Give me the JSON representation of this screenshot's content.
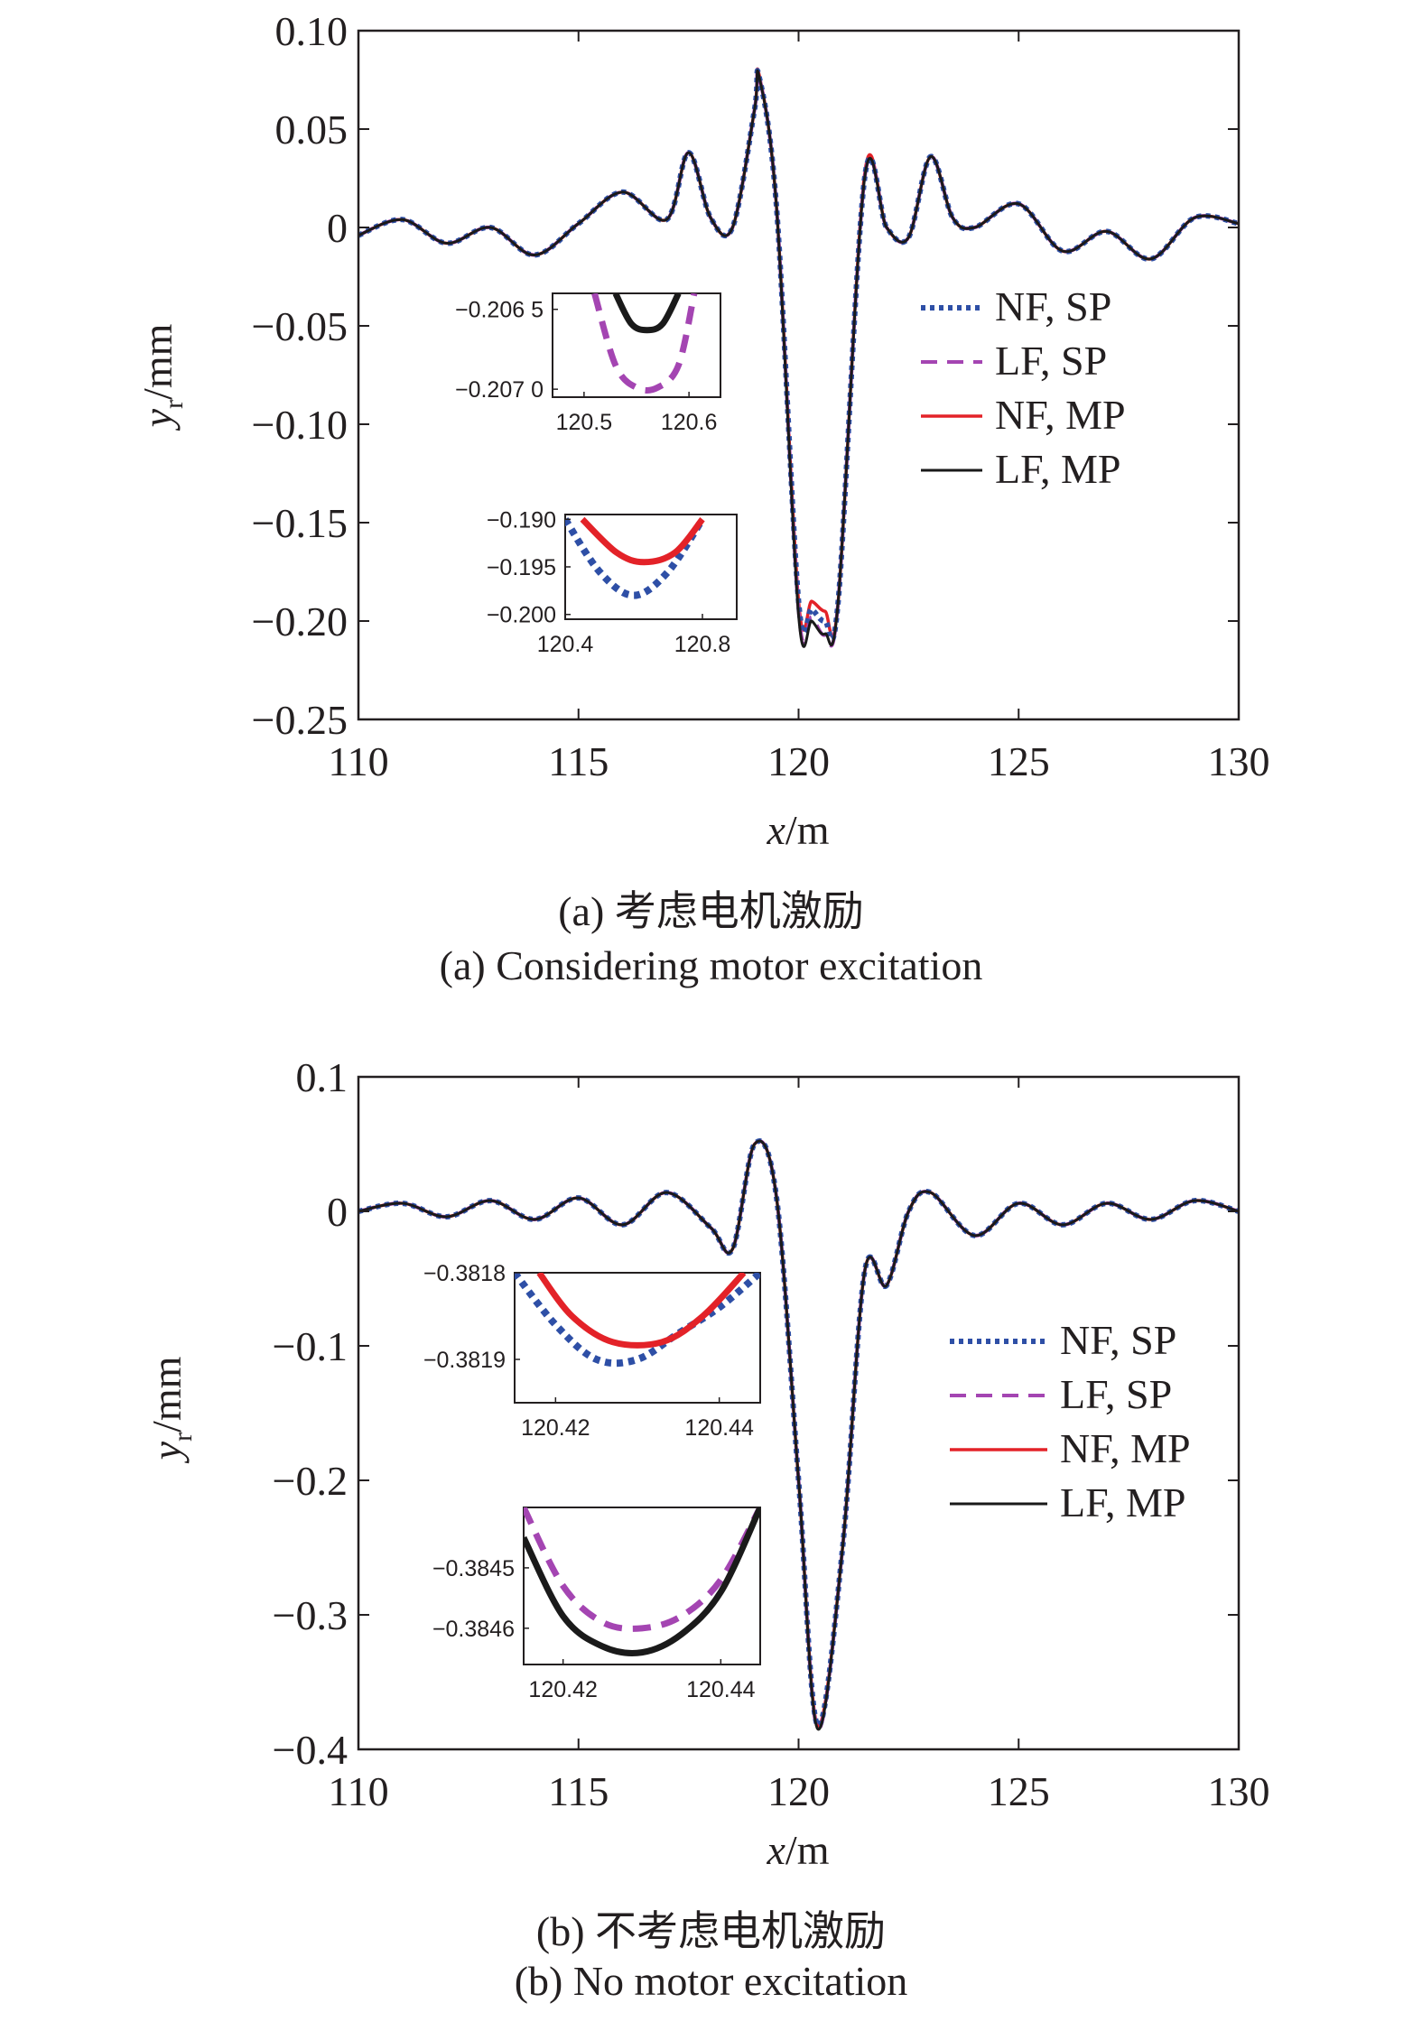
{
  "colors": {
    "nf_sp": "#2e4fa6",
    "lf_sp": "#a445b2",
    "nf_mp": "#e32228",
    "lf_mp": "#1a1a1a"
  },
  "chart_data": [
    {
      "type": "line",
      "caption_cn": "(a) 考虑电机激励",
      "caption_en": "(a) Considering motor excitation",
      "xlabel_var": "x",
      "xlabel_unit": "/m",
      "ylabel_var": "y",
      "ylabel_sub": "r",
      "ylabel_unit": "/mm",
      "xlim": [
        110,
        130
      ],
      "ylim": [
        -0.25,
        0.1
      ],
      "xticks": [
        "110",
        "115",
        "120",
        "125",
        "130"
      ],
      "xtick_values": [
        110,
        115,
        120,
        125,
        130
      ],
      "yticks": [
        "0.10",
        "0.05",
        "0",
        "−0.05",
        "−0.10",
        "−0.15",
        "−0.20",
        "−0.25"
      ],
      "ytick_values": [
        0.1,
        0.05,
        0,
        -0.05,
        -0.1,
        -0.15,
        -0.2,
        -0.25
      ],
      "legend": [
        "NF, SP",
        "LF, SP",
        "NF, MP",
        "LF, MP"
      ],
      "legend_position": "right",
      "series": [
        {
          "name": "NF, SP",
          "x": [
            110,
            111,
            112,
            113,
            114,
            115,
            116,
            117,
            117.5,
            118,
            118.5,
            119,
            119.1,
            119.5,
            120,
            120.3,
            120.6,
            120.9,
            121.5,
            122,
            122.5,
            123,
            123.5,
            124,
            125,
            126,
            127,
            128,
            129,
            130
          ],
          "y": [
            -0.004,
            0.004,
            -0.008,
            0.0,
            -0.014,
            0.002,
            0.018,
            0.004,
            0.038,
            0.005,
            0.0,
            0.06,
            0.077,
            0.01,
            -0.19,
            -0.194,
            -0.2,
            -0.19,
            0.025,
            0.0,
            -0.005,
            0.036,
            0.005,
            0.0,
            0.012,
            -0.012,
            -0.002,
            -0.016,
            0.005,
            0.002
          ]
        },
        {
          "name": "LF, SP",
          "x": [
            110,
            111,
            112,
            113,
            114,
            115,
            116,
            117,
            117.5,
            118,
            118.5,
            119,
            119.1,
            119.5,
            120,
            120.3,
            120.6,
            120.9,
            121.5,
            122,
            122.5,
            123,
            123.5,
            124,
            125,
            126,
            127,
            128,
            129,
            130
          ],
          "y": [
            -0.004,
            0.004,
            -0.008,
            0.0,
            -0.014,
            0.002,
            0.018,
            0.004,
            0.038,
            0.005,
            0.0,
            0.06,
            0.077,
            0.01,
            -0.195,
            -0.198,
            -0.207,
            -0.19,
            0.025,
            0.0,
            -0.005,
            0.036,
            0.005,
            0.0,
            0.012,
            -0.012,
            -0.002,
            -0.016,
            0.005,
            0.002
          ]
        },
        {
          "name": "NF, MP",
          "x": [
            110,
            111,
            112,
            113,
            114,
            115,
            116,
            117,
            117.5,
            118,
            118.5,
            119,
            119.1,
            119.5,
            120,
            120.3,
            120.6,
            120.9,
            121.5,
            122,
            122.5,
            123,
            123.5,
            124,
            125,
            126,
            127,
            128,
            129,
            130
          ],
          "y": [
            -0.004,
            0.004,
            -0.008,
            0.0,
            -0.014,
            0.002,
            0.018,
            0.004,
            0.038,
            0.005,
            0.0,
            0.06,
            0.078,
            0.01,
            -0.19,
            -0.19,
            -0.195,
            -0.19,
            0.027,
            0.0,
            -0.005,
            0.036,
            0.005,
            0.0,
            0.012,
            -0.012,
            -0.002,
            -0.016,
            0.005,
            0.002
          ]
        },
        {
          "name": "LF, MP",
          "x": [
            110,
            111,
            112,
            113,
            114,
            115,
            116,
            117,
            117.5,
            118,
            118.5,
            119,
            119.1,
            119.5,
            120,
            120.3,
            120.6,
            120.9,
            121.5,
            122,
            122.5,
            123,
            123.5,
            124,
            125,
            126,
            127,
            128,
            129,
            130
          ],
          "y": [
            -0.004,
            0.004,
            -0.008,
            0.0,
            -0.014,
            0.002,
            0.018,
            0.004,
            0.038,
            0.005,
            0.0,
            0.06,
            0.077,
            0.01,
            -0.197,
            -0.2,
            -0.2065,
            -0.19,
            0.025,
            0.0,
            -0.005,
            0.036,
            0.005,
            0.0,
            0.012,
            -0.012,
            -0.002,
            -0.016,
            0.005,
            0.002
          ]
        }
      ],
      "insets": [
        {
          "xticks": [
            "120.5",
            "120.6"
          ],
          "xtick_values": [
            120.5,
            120.6
          ],
          "xlim": [
            120.47,
            120.63
          ],
          "yticks": [
            "−0.206 5",
            "−0.207 0"
          ],
          "ytick_values": [
            -0.2065,
            -0.207
          ],
          "ylim": [
            -0.20705,
            -0.2064
          ],
          "series": [
            {
              "name": "LF, MP",
              "x": [
                120.53,
                120.545,
                120.56,
                120.575,
                120.59
              ],
              "y": [
                -0.2064,
                -0.20659,
                -0.20663,
                -0.20659,
                -0.2064
              ]
            },
            {
              "name": "LF, SP",
              "x": [
                120.51,
                120.53,
                120.55,
                120.57,
                120.59,
                120.605
              ],
              "y": [
                -0.2064,
                -0.20685,
                -0.20699,
                -0.20699,
                -0.20685,
                -0.2064
              ]
            }
          ]
        },
        {
          "xticks": [
            "120.4",
            "120.8"
          ],
          "xtick_values": [
            120.4,
            120.8
          ],
          "xlim": [
            120.4,
            120.9
          ],
          "yticks": [
            "−0.190",
            "−0.195",
            "−0.200"
          ],
          "ytick_values": [
            -0.19,
            -0.195,
            -0.2
          ],
          "ylim": [
            -0.2005,
            -0.1895
          ],
          "series": [
            {
              "name": "NF, SP",
              "x": [
                120.4,
                120.5,
                120.6,
                120.7,
                120.8
              ],
              "y": [
                -0.19,
                -0.1955,
                -0.198,
                -0.1955,
                -0.19
              ]
            },
            {
              "name": "NF, MP",
              "x": [
                120.45,
                120.55,
                120.63,
                120.72,
                120.8
              ],
              "y": [
                -0.19,
                -0.1935,
                -0.1945,
                -0.1935,
                -0.19
              ]
            }
          ]
        }
      ]
    },
    {
      "type": "line",
      "caption_cn": "(b) 不考虑电机激励",
      "caption_en": "(b) No motor excitation",
      "xlabel_var": "x",
      "xlabel_unit": "/m",
      "ylabel_var": "y",
      "ylabel_sub": "r",
      "ylabel_unit": "/mm",
      "xlim": [
        110,
        130
      ],
      "ylim": [
        -0.4,
        0.1
      ],
      "xticks": [
        "110",
        "115",
        "120",
        "125",
        "130"
      ],
      "xtick_values": [
        110,
        115,
        120,
        125,
        130
      ],
      "yticks": [
        "0.1",
        "0",
        "−0.1",
        "−0.2",
        "−0.3",
        "−0.4"
      ],
      "ytick_values": [
        0.1,
        0,
        -0.1,
        -0.2,
        -0.3,
        -0.4
      ],
      "legend": [
        "NF, SP",
        "LF, SP",
        "NF, MP",
        "LF, MP"
      ],
      "legend_position": "right",
      "series": [
        {
          "name": "NF, SP",
          "x": [
            110,
            111,
            112,
            113,
            114,
            115,
            116,
            117,
            118,
            118.5,
            119,
            119.5,
            120,
            120.43,
            121,
            121.5,
            122,
            122.5,
            123,
            124,
            125,
            126,
            127,
            128,
            129,
            130
          ],
          "y": [
            0.0,
            0.006,
            -0.004,
            0.008,
            -0.006,
            0.01,
            -0.01,
            0.014,
            -0.012,
            -0.028,
            0.05,
            0.01,
            -0.2,
            -0.3819,
            -0.25,
            -0.045,
            -0.055,
            0.0,
            0.014,
            -0.018,
            0.006,
            -0.01,
            0.006,
            -0.006,
            0.008,
            0.0
          ]
        },
        {
          "name": "LF, SP",
          "x": [
            110,
            111,
            112,
            113,
            114,
            115,
            116,
            117,
            118,
            118.5,
            119,
            119.5,
            120,
            120.43,
            121,
            121.5,
            122,
            122.5,
            123,
            124,
            125,
            126,
            127,
            128,
            129,
            130
          ],
          "y": [
            0.0,
            0.006,
            -0.004,
            0.008,
            -0.006,
            0.01,
            -0.01,
            0.014,
            -0.012,
            -0.028,
            0.05,
            0.01,
            -0.2,
            -0.3846,
            -0.25,
            -0.045,
            -0.055,
            0.0,
            0.014,
            -0.018,
            0.006,
            -0.01,
            0.006,
            -0.006,
            0.008,
            0.0
          ]
        },
        {
          "name": "NF, MP",
          "x": [
            110,
            111,
            112,
            113,
            114,
            115,
            116,
            117,
            118,
            118.5,
            119,
            119.5,
            120,
            120.43,
            121,
            121.5,
            122,
            122.5,
            123,
            124,
            125,
            126,
            127,
            128,
            129,
            130
          ],
          "y": [
            0.0,
            0.006,
            -0.004,
            0.008,
            -0.006,
            0.01,
            -0.01,
            0.014,
            -0.012,
            -0.028,
            0.05,
            0.01,
            -0.2,
            -0.3819,
            -0.25,
            -0.045,
            -0.055,
            0.0,
            0.014,
            -0.018,
            0.006,
            -0.01,
            0.006,
            -0.006,
            0.008,
            0.0
          ]
        },
        {
          "name": "LF, MP",
          "x": [
            110,
            111,
            112,
            113,
            114,
            115,
            116,
            117,
            118,
            118.5,
            119,
            119.5,
            120,
            120.43,
            121,
            121.5,
            122,
            122.5,
            123,
            124,
            125,
            126,
            127,
            128,
            129,
            130
          ],
          "y": [
            0.0,
            0.006,
            -0.004,
            0.008,
            -0.006,
            0.01,
            -0.01,
            0.014,
            -0.012,
            -0.028,
            0.05,
            0.01,
            -0.2,
            -0.3846,
            -0.25,
            -0.045,
            -0.055,
            0.0,
            0.014,
            -0.018,
            0.006,
            -0.01,
            0.006,
            -0.006,
            0.008,
            0.0
          ]
        }
      ],
      "insets": [
        {
          "xticks": [
            "120.42",
            "120.44"
          ],
          "xtick_values": [
            120.42,
            120.44
          ],
          "xlim": [
            120.415,
            120.445
          ],
          "yticks": [
            "−0.3818",
            "−0.3819"
          ],
          "ytick_values": [
            -0.3818,
            -0.3819
          ],
          "ylim": [
            -0.38195,
            -0.3818
          ],
          "series": [
            {
              "name": "NF, SP",
              "x": [
                120.415,
                120.42,
                120.425,
                120.43,
                120.435,
                120.44,
                120.445
              ],
              "y": [
                -0.3818,
                -0.38186,
                -0.3819,
                -0.3819,
                -0.38187,
                -0.38184,
                -0.3818
              ]
            },
            {
              "name": "NF, MP",
              "x": [
                120.418,
                120.422,
                120.427,
                120.433,
                120.438,
                120.443
              ],
              "y": [
                -0.3818,
                -0.38185,
                -0.38188,
                -0.38188,
                -0.38185,
                -0.3818
              ]
            }
          ]
        },
        {
          "xticks": [
            "120.42",
            "120.44"
          ],
          "xtick_values": [
            120.42,
            120.44
          ],
          "xlim": [
            120.415,
            120.445
          ],
          "yticks": [
            "−0.3845",
            "−0.3846"
          ],
          "ytick_values": [
            -0.3845,
            -0.3846
          ],
          "ylim": [
            -0.38466,
            -0.3844
          ],
          "series": [
            {
              "name": "LF, SP",
              "x": [
                120.415,
                120.42,
                120.425,
                120.43,
                120.435,
                120.44,
                120.445
              ],
              "y": [
                -0.3844,
                -0.38453,
                -0.38459,
                -0.3846,
                -0.38458,
                -0.38452,
                -0.3844
              ]
            },
            {
              "name": "LF, MP",
              "x": [
                120.415,
                120.42,
                120.425,
                120.43,
                120.435,
                120.44,
                120.445
              ],
              "y": [
                -0.38445,
                -0.38458,
                -0.38463,
                -0.38464,
                -0.38461,
                -0.38454,
                -0.3844
              ]
            }
          ]
        }
      ]
    }
  ]
}
